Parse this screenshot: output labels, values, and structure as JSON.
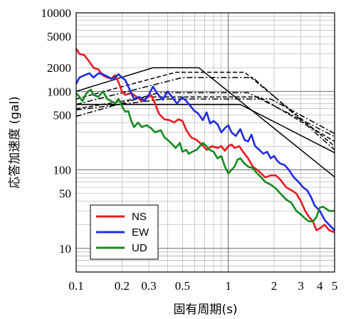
{
  "chart_data": {
    "type": "line",
    "title": "",
    "xlabel": "固有周期(s)",
    "ylabel": "応答加速度 (gal)",
    "x_scale": "log",
    "y_scale": "log",
    "xlim": [
      0.1,
      5
    ],
    "ylim": [
      5,
      10000
    ],
    "grid": true,
    "legend_position": "bottom-left",
    "x_ticks": [
      {
        "value": 0.1,
        "label": "0.1"
      },
      {
        "value": 0.2,
        "label": "0.2"
      },
      {
        "value": 0.3,
        "label": "0.3"
      },
      {
        "value": 0.5,
        "label": "0.5"
      },
      {
        "value": 1,
        "label": "1"
      },
      {
        "value": 2,
        "label": "2"
      },
      {
        "value": 3,
        "label": "3"
      },
      {
        "value": 4,
        "label": "4"
      },
      {
        "value": 5,
        "label": "5"
      }
    ],
    "y_ticks": [
      {
        "value": 10,
        "label": "10"
      },
      {
        "value": 50,
        "label": "50"
      },
      {
        "value": 100,
        "label": "100"
      },
      {
        "value": 500,
        "label": "500"
      },
      {
        "value": 1000,
        "label": "1000"
      },
      {
        "value": 2000,
        "label": "2000"
      },
      {
        "value": 5000,
        "label": "5000"
      },
      {
        "value": 10000,
        "label": "10000"
      }
    ],
    "series": [
      {
        "name": "NS",
        "color": "#e8191f",
        "points": [
          [
            0.1,
            3500
          ],
          [
            0.105,
            3000
          ],
          [
            0.113,
            2900
          ],
          [
            0.12,
            2500
          ],
          [
            0.13,
            2000
          ],
          [
            0.14,
            1900
          ],
          [
            0.15,
            1600
          ],
          [
            0.16,
            1500
          ],
          [
            0.17,
            1450
          ],
          [
            0.18,
            1600
          ],
          [
            0.19,
            1300
          ],
          [
            0.2,
            1000
          ],
          [
            0.21,
            900
          ],
          [
            0.23,
            950
          ],
          [
            0.25,
            850
          ],
          [
            0.27,
            750
          ],
          [
            0.29,
            820
          ],
          [
            0.31,
            900
          ],
          [
            0.33,
            700
          ],
          [
            0.35,
            520
          ],
          [
            0.38,
            440
          ],
          [
            0.41,
            430
          ],
          [
            0.44,
            400
          ],
          [
            0.47,
            440
          ],
          [
            0.5,
            420
          ],
          [
            0.53,
            320
          ],
          [
            0.57,
            260
          ],
          [
            0.62,
            240
          ],
          [
            0.67,
            210
          ],
          [
            0.72,
            180
          ],
          [
            0.78,
            200
          ],
          [
            0.85,
            190
          ],
          [
            0.9,
            200
          ],
          [
            0.95,
            175
          ],
          [
            1.0,
            200
          ],
          [
            1.05,
            210
          ],
          [
            1.1,
            190
          ],
          [
            1.18,
            200
          ],
          [
            1.25,
            170
          ],
          [
            1.35,
            140
          ],
          [
            1.45,
            110
          ],
          [
            1.6,
            95
          ],
          [
            1.75,
            80
          ],
          [
            1.9,
            85
          ],
          [
            2.05,
            85
          ],
          [
            2.2,
            75
          ],
          [
            2.4,
            60
          ],
          [
            2.6,
            55
          ],
          [
            2.8,
            50
          ],
          [
            3.0,
            40
          ],
          [
            3.2,
            30
          ],
          [
            3.4,
            25
          ],
          [
            3.6,
            22
          ],
          [
            3.8,
            17
          ],
          [
            4.0,
            18
          ],
          [
            4.3,
            20
          ],
          [
            4.6,
            17
          ],
          [
            5.0,
            16
          ]
        ]
      },
      {
        "name": "EW",
        "color": "#1f2de0",
        "points": [
          [
            0.1,
            1250
          ],
          [
            0.105,
            1500
          ],
          [
            0.113,
            1600
          ],
          [
            0.122,
            1700
          ],
          [
            0.13,
            1500
          ],
          [
            0.14,
            1700
          ],
          [
            0.15,
            1650
          ],
          [
            0.16,
            1550
          ],
          [
            0.17,
            1450
          ],
          [
            0.18,
            1500
          ],
          [
            0.19,
            1650
          ],
          [
            0.2,
            1500
          ],
          [
            0.21,
            1400
          ],
          [
            0.22,
            1150
          ],
          [
            0.24,
            800
          ],
          [
            0.26,
            850
          ],
          [
            0.28,
            750
          ],
          [
            0.3,
            900
          ],
          [
            0.32,
            1150
          ],
          [
            0.34,
            950
          ],
          [
            0.37,
            780
          ],
          [
            0.4,
            1000
          ],
          [
            0.43,
            830
          ],
          [
            0.46,
            700
          ],
          [
            0.5,
            840
          ],
          [
            0.53,
            750
          ],
          [
            0.56,
            660
          ],
          [
            0.6,
            560
          ],
          [
            0.63,
            530
          ],
          [
            0.68,
            430
          ],
          [
            0.72,
            540
          ],
          [
            0.76,
            390
          ],
          [
            0.8,
            420
          ],
          [
            0.85,
            380
          ],
          [
            0.9,
            300
          ],
          [
            0.95,
            340
          ],
          [
            1.0,
            370
          ],
          [
            1.05,
            300
          ],
          [
            1.12,
            270
          ],
          [
            1.2,
            330
          ],
          [
            1.28,
            240
          ],
          [
            1.35,
            230
          ],
          [
            1.42,
            280
          ],
          [
            1.5,
            200
          ],
          [
            1.6,
            180
          ],
          [
            1.7,
            160
          ],
          [
            1.8,
            170
          ],
          [
            1.9,
            140
          ],
          [
            2.0,
            150
          ],
          [
            2.1,
            130
          ],
          [
            2.2,
            120
          ],
          [
            2.35,
            115
          ],
          [
            2.5,
            100
          ],
          [
            2.7,
            80
          ],
          [
            2.9,
            70
          ],
          [
            3.1,
            60
          ],
          [
            3.3,
            55
          ],
          [
            3.5,
            45
          ],
          [
            3.7,
            35
          ],
          [
            4.0,
            30
          ],
          [
            4.3,
            23
          ],
          [
            4.6,
            20
          ],
          [
            5.0,
            17
          ]
        ]
      },
      {
        "name": "UD",
        "color": "#138a1e",
        "points": [
          [
            0.1,
            950
          ],
          [
            0.105,
            850
          ],
          [
            0.11,
            750
          ],
          [
            0.115,
            900
          ],
          [
            0.12,
            1000
          ],
          [
            0.125,
            1050
          ],
          [
            0.13,
            900
          ],
          [
            0.14,
            850
          ],
          [
            0.15,
            1000
          ],
          [
            0.16,
            800
          ],
          [
            0.17,
            750
          ],
          [
            0.18,
            700
          ],
          [
            0.19,
            800
          ],
          [
            0.2,
            650
          ],
          [
            0.21,
            550
          ],
          [
            0.22,
            560
          ],
          [
            0.23,
            420
          ],
          [
            0.24,
            350
          ],
          [
            0.255,
            400
          ],
          [
            0.27,
            350
          ],
          [
            0.29,
            370
          ],
          [
            0.31,
            340
          ],
          [
            0.33,
            300
          ],
          [
            0.36,
            320
          ],
          [
            0.38,
            260
          ],
          [
            0.4,
            240
          ],
          [
            0.43,
            210
          ],
          [
            0.45,
            190
          ],
          [
            0.48,
            220
          ],
          [
            0.5,
            170
          ],
          [
            0.53,
            180
          ],
          [
            0.55,
            160
          ],
          [
            0.58,
            170
          ],
          [
            0.62,
            180
          ],
          [
            0.65,
            200
          ],
          [
            0.68,
            220
          ],
          [
            0.72,
            200
          ],
          [
            0.75,
            180
          ],
          [
            0.8,
            170
          ],
          [
            0.85,
            140
          ],
          [
            0.9,
            150
          ],
          [
            0.95,
            110
          ],
          [
            1.0,
            90
          ],
          [
            1.05,
            100
          ],
          [
            1.1,
            110
          ],
          [
            1.15,
            135
          ],
          [
            1.2,
            140
          ],
          [
            1.28,
            120
          ],
          [
            1.35,
            110
          ],
          [
            1.45,
            105
          ],
          [
            1.55,
            90
          ],
          [
            1.65,
            80
          ],
          [
            1.75,
            70
          ],
          [
            1.9,
            65
          ],
          [
            2.05,
            58
          ],
          [
            2.2,
            50
          ],
          [
            2.4,
            42
          ],
          [
            2.6,
            38
          ],
          [
            2.8,
            30
          ],
          [
            3.0,
            27
          ],
          [
            3.2,
            24
          ],
          [
            3.4,
            22
          ],
          [
            3.6,
            22
          ],
          [
            3.8,
            25
          ],
          [
            4.0,
            33
          ],
          [
            4.2,
            34
          ],
          [
            4.6,
            30
          ],
          [
            5.0,
            30
          ]
        ]
      }
    ],
    "reference_spectra": [
      {
        "style": "solid",
        "color": "#000000",
        "points": [
          [
            0.1,
            1000
          ],
          [
            0.32,
            2000
          ],
          [
            0.64,
            2000
          ],
          [
            5.0,
            81
          ]
        ]
      },
      {
        "style": "solid",
        "color": "#000000",
        "points": [
          [
            0.1,
            680
          ],
          [
            1.2,
            680
          ],
          [
            5.0,
            165
          ]
        ]
      },
      {
        "style": "dash",
        "color": "#000000",
        "points": [
          [
            0.1,
            800
          ],
          [
            0.45,
            1750
          ],
          [
            1.28,
            1750
          ],
          [
            5.0,
            200
          ]
        ]
      },
      {
        "style": "dashdot",
        "color": "#000000",
        "points": [
          [
            0.1,
            680
          ],
          [
            0.5,
            1500
          ],
          [
            1.45,
            1500
          ],
          [
            5.0,
            180
          ]
        ]
      },
      {
        "style": "dashdot",
        "color": "#000000",
        "points": [
          [
            0.1,
            480
          ],
          [
            0.35,
            960
          ],
          [
            1.35,
            960
          ],
          [
            5.0,
            265
          ]
        ]
      },
      {
        "style": "dashdot",
        "color": "#000000",
        "points": [
          [
            0.1,
            580
          ],
          [
            0.38,
            800
          ],
          [
            1.9,
            800
          ],
          [
            5.0,
            290
          ]
        ]
      },
      {
        "style": "dash",
        "color": "#000000",
        "points": [
          [
            0.1,
            600
          ],
          [
            0.3,
            850
          ],
          [
            1.6,
            850
          ],
          [
            5.0,
            230
          ]
        ]
      }
    ]
  }
}
